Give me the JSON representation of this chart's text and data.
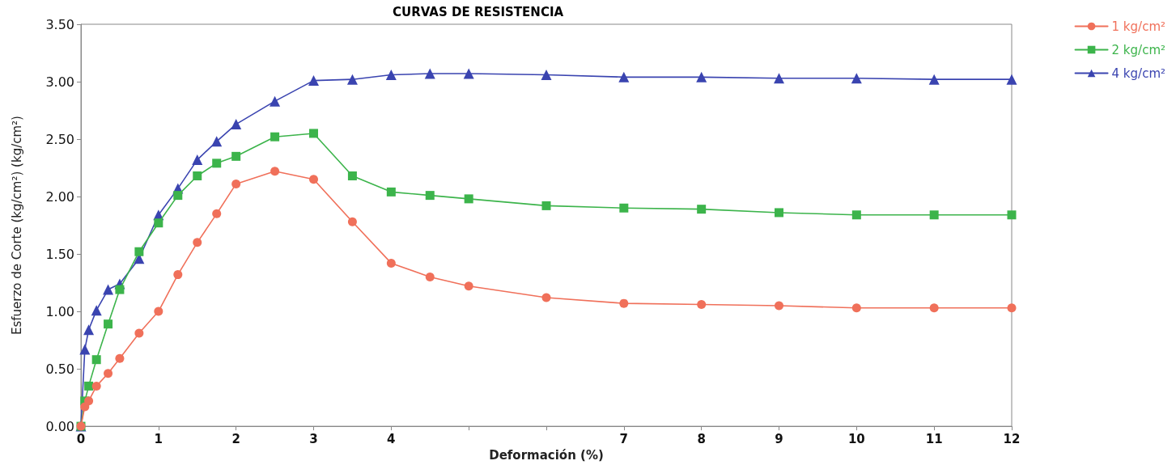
{
  "chart_data": {
    "type": "line",
    "title": "CURVAS DE RESISTENCIA",
    "xlabel": "Deformación (%)",
    "ylabel": "Esfuerzo de Corte (kg/cm²) (kg/cm²)",
    "x": [
      0,
      0.05,
      0.1,
      0.2,
      0.35,
      0.5,
      0.75,
      1,
      1.25,
      1.5,
      1.75,
      2,
      2.5,
      3,
      3.5,
      4,
      4.5,
      5,
      6,
      7,
      8,
      9,
      10,
      11,
      12
    ],
    "series": [
      {
        "name": "1 kg/cm²",
        "color": "#f0705a",
        "marker": "circle",
        "values": [
          0,
          0.17,
          0.22,
          0.35,
          0.46,
          0.59,
          0.81,
          1.0,
          1.32,
          1.6,
          1.85,
          2.11,
          2.22,
          2.15,
          1.78,
          1.42,
          1.3,
          1.22,
          1.12,
          1.07,
          1.06,
          1.05,
          1.03,
          1.03,
          1.03
        ]
      },
      {
        "name": "2 kg/cm²",
        "color": "#3cb44b",
        "marker": "square",
        "values": [
          0,
          0.22,
          0.35,
          0.58,
          0.89,
          1.19,
          1.52,
          1.77,
          2.01,
          2.18,
          2.29,
          2.35,
          2.52,
          2.55,
          2.18,
          2.04,
          2.01,
          1.98,
          1.92,
          1.9,
          1.89,
          1.86,
          1.84,
          1.84,
          1.84
        ]
      },
      {
        "name": "4 kg/cm²",
        "color": "#3a44b0",
        "marker": "triangle",
        "values": [
          0,
          0.67,
          0.84,
          1.01,
          1.19,
          1.24,
          1.46,
          1.84,
          2.07,
          2.32,
          2.48,
          2.63,
          2.83,
          3.01,
          3.02,
          3.06,
          3.07,
          3.07,
          3.06,
          3.04,
          3.04,
          3.03,
          3.03,
          3.02,
          3.02
        ]
      }
    ],
    "xlim": [
      0,
      12
    ],
    "xticks": [
      0,
      1,
      2,
      3,
      4,
      {
        "value": 5,
        "label": null
      },
      {
        "value": 6,
        "label": null
      },
      7,
      8,
      9,
      10,
      11,
      12
    ],
    "ylim": [
      0,
      3.5
    ],
    "yticks": [
      {
        "value": 0,
        "label": "0.00"
      },
      {
        "value": 0.5,
        "label": "0.50"
      },
      {
        "value": 1,
        "label": "1.00"
      },
      {
        "value": 1.5,
        "label": "1.50"
      },
      {
        "value": 2,
        "label": "2.00"
      },
      {
        "value": 2.5,
        "label": "2.50"
      },
      {
        "value": 3,
        "label": "3.00"
      },
      {
        "value": 3.5,
        "label": "3.50"
      }
    ],
    "grid": false,
    "legend": "top right",
    "line_style": "solid"
  }
}
